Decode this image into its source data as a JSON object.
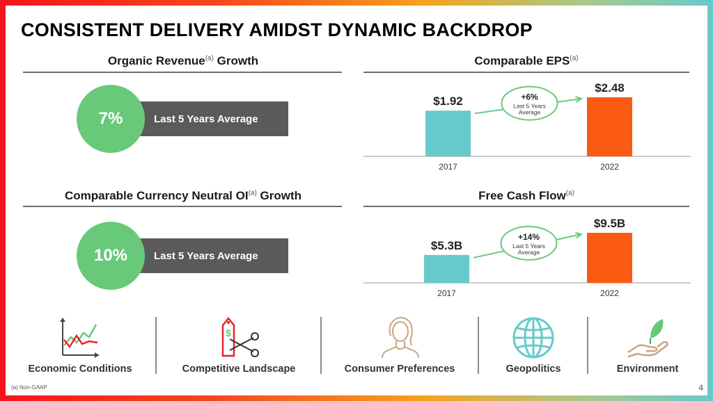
{
  "title": "CONSISTENT DELIVERY AMIDST DYNAMIC BACKDROP",
  "organic": {
    "title": "Organic Revenue",
    "sup": "(a)",
    "title_tail": " Growth",
    "value": "7%",
    "label": "Last 5 Years Average"
  },
  "oi": {
    "title": "Comparable Currency Neutral OI",
    "sup": "(a)",
    "title_tail": " Growth",
    "value": "10%",
    "label": "Last 5 Years Average"
  },
  "eps": {
    "title": "Comparable EPS",
    "sup": "(a)",
    "badge_pct": "+6%",
    "badge_line1": "Last 5 Years",
    "badge_line2": "Average"
  },
  "fcf": {
    "title": "Free Cash Flow",
    "sup": "(a)",
    "badge_pct": "+14%",
    "badge_line1": "Last 5 Years",
    "badge_line2": "Average"
  },
  "chart_data": [
    {
      "type": "bar",
      "title": "Comparable EPS",
      "categories": [
        "2017",
        "2022"
      ],
      "values": [
        1.92,
        2.48
      ],
      "value_labels": [
        "$1.92",
        "$2.48"
      ],
      "colors": [
        "#67c9cc",
        "#fb5a13"
      ]
    },
    {
      "type": "bar",
      "title": "Free Cash Flow",
      "categories": [
        "2017",
        "2022"
      ],
      "values": [
        5.3,
        9.5
      ],
      "value_labels": [
        "$5.3B",
        "$9.5B"
      ],
      "colors": [
        "#67c9cc",
        "#fb5a13"
      ]
    }
  ],
  "factors": [
    {
      "label": "Economic Conditions",
      "icon": "economic-chart-icon"
    },
    {
      "label": "Competitive Landscape",
      "icon": "price-tag-scissors-icon"
    },
    {
      "label": "Consumer Preferences",
      "icon": "person-icon"
    },
    {
      "label": "Geopolitics",
      "icon": "globe-icon"
    },
    {
      "label": "Environment",
      "icon": "hand-plant-icon"
    }
  ],
  "footnote": "(a) Non-GAAP",
  "page_number": "4",
  "colors": {
    "teal": "#67c9cc",
    "orange": "#fb5a13",
    "green": "#69c97a",
    "gray": "#5a5a5a"
  }
}
